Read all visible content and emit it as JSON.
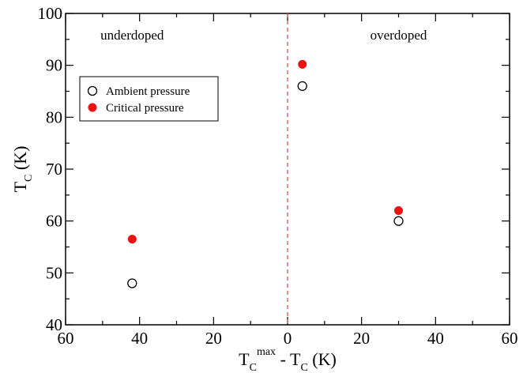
{
  "chart_data": {
    "type": "scatter",
    "title": "",
    "xlabel": {
      "base": "T",
      "sub1": "C",
      "sup": "max",
      "mid": " - T",
      "sub2": "C",
      "unit": " (K)"
    },
    "ylabel": {
      "base": "T",
      "sub": "C",
      "unit": " (K)"
    },
    "xlim": [
      -60,
      60
    ],
    "ylim": [
      40,
      100
    ],
    "x_ticks": [
      -60,
      -40,
      -20,
      0,
      20,
      40,
      60
    ],
    "x_tick_labels": [
      "60",
      "40",
      "20",
      "0",
      "20",
      "40",
      "60"
    ],
    "y_ticks": [
      40,
      50,
      60,
      70,
      80,
      90,
      100
    ],
    "y_tick_labels": [
      "40",
      "50",
      "60",
      "70",
      "80",
      "90",
      "100"
    ],
    "grid": false,
    "legend_position": "upper-left",
    "divider": {
      "x": 0,
      "color": "#e05050",
      "style": "dashed"
    },
    "annotations": [
      {
        "text": "underdoped",
        "x": -42,
        "y": 95
      },
      {
        "text": "overdoped",
        "x": 30,
        "y": 95
      }
    ],
    "series": [
      {
        "name": "Ambient pressure",
        "marker": "open-circle",
        "color": "#000000",
        "points": [
          {
            "x": -42,
            "y": 48
          },
          {
            "x": 4,
            "y": 86
          },
          {
            "x": 30,
            "y": 60
          }
        ]
      },
      {
        "name": "Critical pressure",
        "marker": "filled-circle",
        "color": "#ee1111",
        "points": [
          {
            "x": -42,
            "y": 56.5
          },
          {
            "x": 4,
            "y": 90.2
          },
          {
            "x": 30,
            "y": 62
          }
        ]
      }
    ]
  }
}
